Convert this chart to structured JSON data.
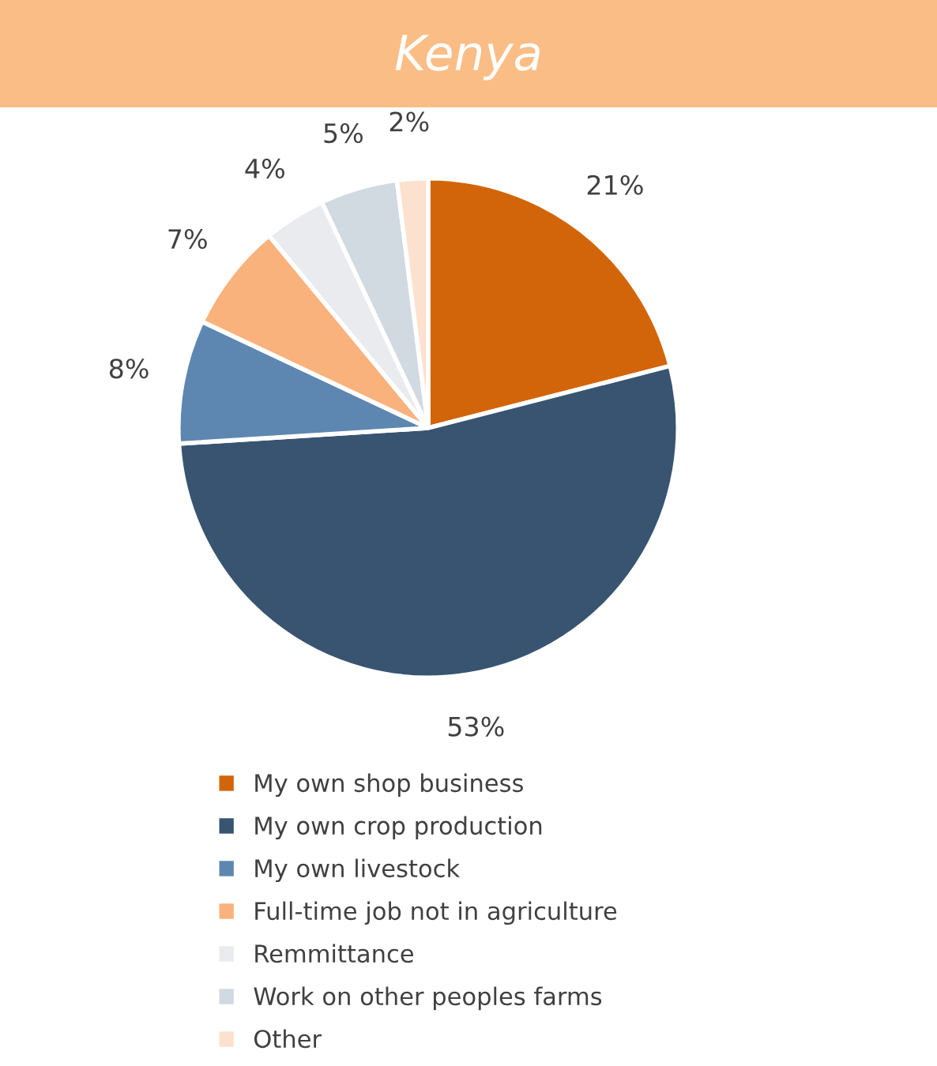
{
  "chart_data": {
    "type": "pie",
    "title": "Kenya",
    "categories": [
      "My own shop business",
      "My own crop production",
      "My own livestock",
      "Full-time job not in agriculture",
      "Remmittance",
      "Work on other peoples farms",
      "Other"
    ],
    "values": [
      21,
      53,
      8,
      7,
      4,
      5,
      2
    ],
    "colors": [
      "#d2650a",
      "#385471",
      "#5d87b1",
      "#f9b27c",
      "#e9ebee",
      "#d1d9e1",
      "#fde1cf"
    ],
    "value_labels": [
      "21%",
      "53%",
      "8%",
      "7%",
      "4%",
      "5%",
      "2%"
    ],
    "legend": "bottom"
  }
}
